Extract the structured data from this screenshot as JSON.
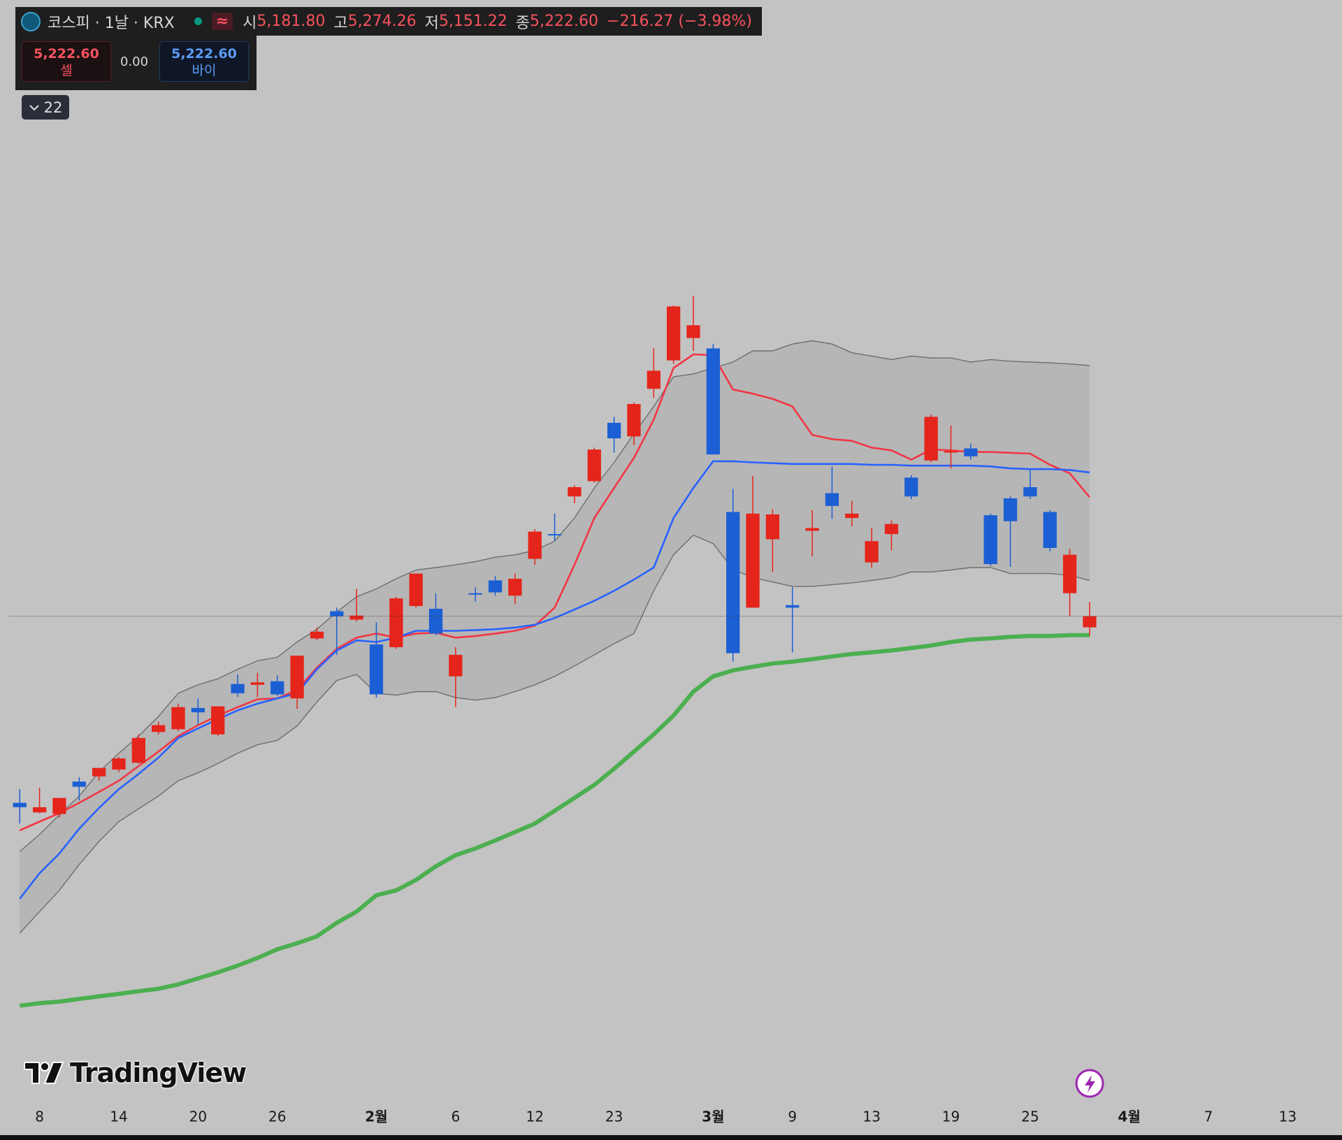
{
  "header": {
    "symbol": "코스피 · 1날 · KRX",
    "flag": "≈",
    "open_label": "시",
    "open": "5,181.80",
    "high_label": "고",
    "high": "5,274.26",
    "low_label": "저",
    "low": "5,151.22",
    "close_label": "종",
    "close": "5,222.60",
    "change": "−216.27 (−3.98%)"
  },
  "trade": {
    "sell_price": "5,222.60",
    "sell": "셀",
    "spread": "0.00",
    "buy_price": "5,222.60",
    "buy": "바이"
  },
  "collapse": "22",
  "logo": "TradingView",
  "chart_data": {
    "type": "candlestick",
    "x": [
      0,
      1,
      2,
      3,
      4,
      5,
      6,
      7,
      8,
      9,
      10,
      11,
      12,
      13,
      14,
      15,
      16,
      17,
      18,
      19,
      20,
      21,
      22,
      23,
      24,
      25,
      26,
      27,
      28,
      29,
      30,
      31,
      32,
      33,
      34,
      35,
      36,
      37,
      38,
      39,
      40,
      41,
      42,
      43,
      44,
      45,
      46,
      47,
      48,
      49,
      50,
      51,
      52,
      53,
      54
    ],
    "xlim": [
      -0.52,
      66.74
    ],
    "ylim": [
      3432,
      7483
    ],
    "xticks": [
      {
        "value": 1,
        "label": "8"
      },
      {
        "value": 5,
        "label": "14"
      },
      {
        "value": 9,
        "label": "20"
      },
      {
        "value": 13,
        "label": "26"
      },
      {
        "value": 18,
        "label": "2월",
        "major": true
      },
      {
        "value": 22,
        "label": "6"
      },
      {
        "value": 26,
        "label": "12"
      },
      {
        "value": 30,
        "label": "23"
      },
      {
        "value": 35,
        "label": "3월",
        "major": true
      },
      {
        "value": 39,
        "label": "9"
      },
      {
        "value": 43,
        "label": "13"
      },
      {
        "value": 47,
        "label": "19"
      },
      {
        "value": 51,
        "label": "25"
      },
      {
        "value": 56,
        "label": "4월",
        "major": true
      },
      {
        "value": 60,
        "label": "7"
      },
      {
        "value": 64,
        "label": "13"
      }
    ],
    "candles": {
      "up_color": "#e5251b",
      "down_color": "#1c5fd4",
      "open": [
        4538,
        4503,
        4497,
        4616,
        4635,
        4660,
        4685,
        4798,
        4808,
        4886,
        4789,
        4974,
        4971,
        4984,
        4921,
        5141,
        5241,
        5210,
        5119,
        5109,
        5260,
        5250,
        5002,
        5307,
        5354,
        5298,
        5433,
        5524,
        5662,
        5718,
        5932,
        5882,
        6057,
        6161,
        6243,
        6205,
        5605,
        5254,
        5505,
        5263,
        5536,
        5674,
        5583,
        5420,
        5524,
        5731,
        5794,
        5825,
        5838,
        5593,
        5655,
        5696,
        5605,
        5307,
        5181.8
      ],
      "high": [
        4588,
        4594,
        4556,
        4632,
        4666,
        4707,
        4789,
        4836,
        4902,
        4921,
        4892,
        5009,
        5015,
        5006,
        5078,
        5181,
        5254,
        5323,
        5200,
        5294,
        5379,
        5307,
        5109,
        5329,
        5370,
        5379,
        5542,
        5599,
        5703,
        5841,
        5954,
        6007,
        6205,
        6362,
        6397,
        6221,
        5690,
        5737,
        5615,
        5329,
        5612,
        5772,
        5646,
        5546,
        5574,
        5740,
        5963,
        5922,
        5856,
        5599,
        5662,
        5762,
        5612,
        5470,
        5274.26
      ],
      "low": [
        4462,
        4500,
        4484,
        4547,
        4619,
        4651,
        4682,
        4789,
        4801,
        4827,
        4783,
        4927,
        4927,
        4930,
        4883,
        5134,
        5081,
        5203,
        4924,
        5103,
        5254,
        5153,
        4889,
        5276,
        5298,
        5266,
        5411,
        5498,
        5637,
        5712,
        5822,
        5850,
        6023,
        6148,
        6196,
        5816,
        5056,
        5254,
        5385,
        5090,
        5442,
        5580,
        5552,
        5401,
        5464,
        5652,
        5787,
        5765,
        5797,
        5407,
        5404,
        5652,
        5461,
        5222,
        5151.22
      ],
      "close": [
        4522,
        4522,
        4556,
        4597,
        4666,
        4701,
        4776,
        4823,
        4889,
        4870,
        4892,
        4940,
        4980,
        4936,
        5078,
        5166,
        5222,
        5225,
        4936,
        5288,
        5379,
        5159,
        5081,
        5304,
        5310,
        5360,
        5533,
        5520,
        5696,
        5834,
        5875,
        6001,
        6123,
        6359,
        6290,
        5816,
        5087,
        5599,
        5596,
        5254,
        5546,
        5627,
        5599,
        5498,
        5561,
        5662,
        5954,
        5828,
        5809,
        5414,
        5571,
        5662,
        5473,
        5448,
        5222.6
      ]
    },
    "bands": {
      "color": "#6e6e6e",
      "fill": "#a6a6a6",
      "upper": [
        4359,
        4422,
        4494,
        4563,
        4651,
        4720,
        4783,
        4855,
        4940,
        4971,
        4993,
        5028,
        5059,
        5072,
        5128,
        5175,
        5238,
        5294,
        5323,
        5360,
        5392,
        5401,
        5411,
        5423,
        5439,
        5448,
        5464,
        5498,
        5583,
        5693,
        5787,
        5891,
        5992,
        6101,
        6111,
        6133,
        6155,
        6196,
        6196,
        6221,
        6233,
        6221,
        6189,
        6177,
        6164,
        6177,
        6170,
        6170,
        6155,
        6164,
        6158,
        6155,
        6152,
        6148,
        6142
      ],
      "lower": [
        4060,
        4139,
        4217,
        4312,
        4396,
        4469,
        4516,
        4563,
        4619,
        4648,
        4682,
        4720,
        4751,
        4767,
        4820,
        4908,
        4987,
        5009,
        4940,
        4933,
        4946,
        4946,
        4924,
        4915,
        4924,
        4946,
        4971,
        5002,
        5040,
        5081,
        5122,
        5159,
        5316,
        5448,
        5520,
        5489,
        5395,
        5364,
        5348,
        5332,
        5332,
        5338,
        5345,
        5354,
        5364,
        5385,
        5385,
        5392,
        5401,
        5401,
        5379,
        5379,
        5379,
        5373,
        5354
      ]
    },
    "lines": [
      {
        "color": "#f23645",
        "values": [
          4437,
          4469,
          4500,
          4538,
          4578,
          4619,
          4673,
          4726,
          4783,
          4823,
          4858,
          4889,
          4918,
          4921,
          4952,
          5034,
          5103,
          5144,
          5159,
          5144,
          5159,
          5162,
          5144,
          5150,
          5159,
          5169,
          5188,
          5254,
          5411,
          5583,
          5693,
          5803,
          5944,
          6133,
          6183,
          6180,
          6054,
          6039,
          6020,
          5992,
          5888,
          5872,
          5866,
          5841,
          5831,
          5797,
          5834,
          5831,
          5825,
          5825,
          5822,
          5819,
          5778,
          5747,
          5659
        ]
      },
      {
        "color": "#2962ff",
        "values": [
          4186,
          4280,
          4352,
          4443,
          4519,
          4588,
          4644,
          4704,
          4776,
          4811,
          4845,
          4877,
          4902,
          4921,
          4940,
          5028,
          5097,
          5134,
          5128,
          5144,
          5169,
          5169,
          5169,
          5172,
          5175,
          5181,
          5191,
          5216,
          5247,
          5279,
          5316,
          5357,
          5401,
          5583,
          5693,
          5791,
          5791,
          5787,
          5784,
          5781,
          5781,
          5781,
          5781,
          5778,
          5778,
          5775,
          5775,
          5775,
          5775,
          5772,
          5765,
          5762,
          5762,
          5759,
          5750
        ]
      },
      {
        "color": "#4caf50",
        "bold": true,
        "values": [
          3794,
          3803,
          3809,
          3819,
          3828,
          3837,
          3847,
          3856,
          3872,
          3894,
          3916,
          3941,
          3969,
          4001,
          4023,
          4048,
          4098,
          4139,
          4199,
          4217,
          4255,
          4305,
          4346,
          4371,
          4400,
          4431,
          4462,
          4509,
          4556,
          4604,
          4663,
          4726,
          4789,
          4858,
          4946,
          5002,
          5024,
          5037,
          5049,
          5056,
          5065,
          5075,
          5084,
          5090,
          5097,
          5106,
          5115,
          5128,
          5137,
          5141,
          5147,
          5150,
          5150,
          5153,
          5153
        ]
      }
    ],
    "price_line": true
  }
}
